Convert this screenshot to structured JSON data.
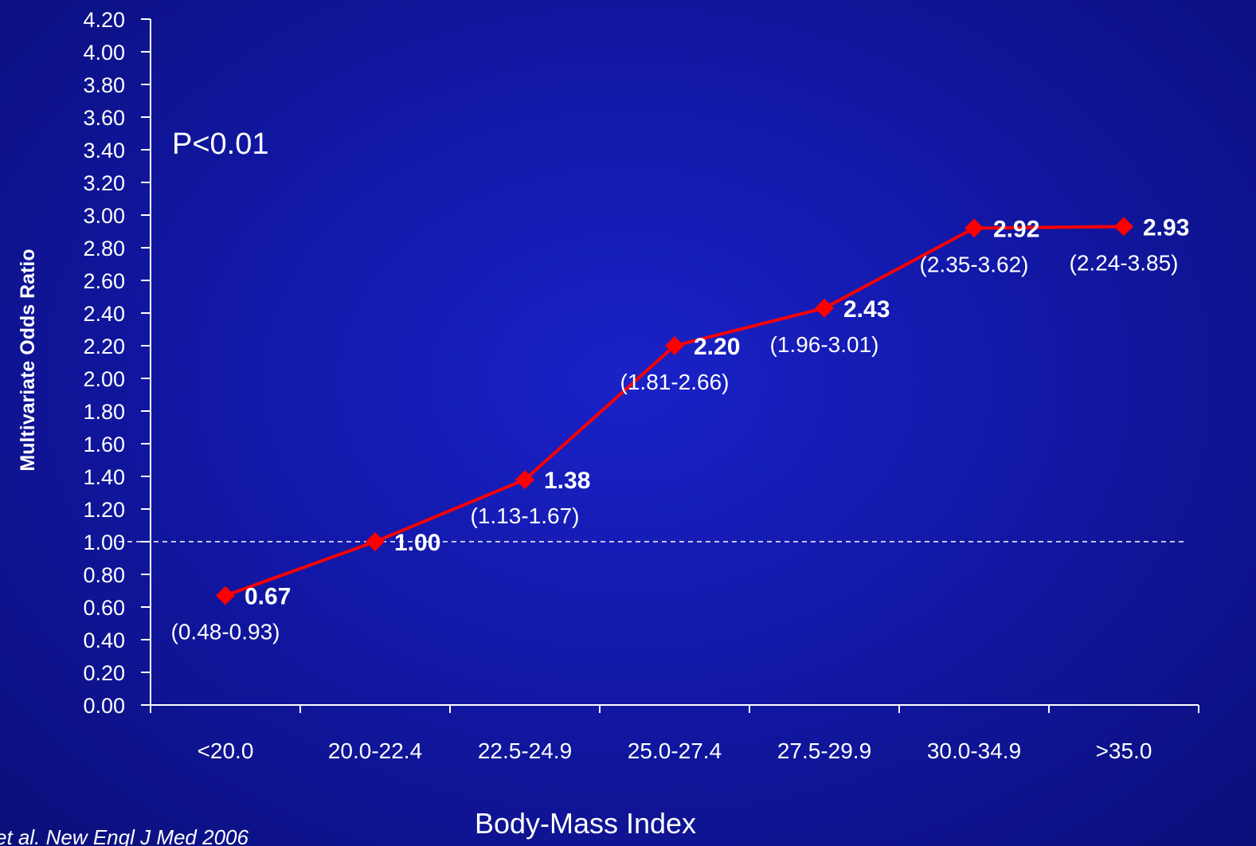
{
  "chart_data": {
    "type": "line",
    "categories": [
      "<20.0",
      "20.0-22.4",
      "22.5-24.9",
      "25.0-27.4",
      "27.5-29.9",
      "30.0-34.9",
      ">35.0"
    ],
    "series": [
      {
        "values": [
          0.67,
          1.0,
          1.38,
          2.2,
          2.43,
          2.92,
          2.93
        ],
        "value_labels": [
          "0.67",
          "1.00",
          "1.38",
          "2.20",
          "2.43",
          "2.92",
          "2.93"
        ],
        "ci_labels": [
          "(0.48-0.93)",
          "",
          "(1.13-1.67)",
          "(1.81-2.66)",
          "(1.96-3.01)",
          "(2.35-3.62)",
          "(2.24-3.85)"
        ],
        "color": "#ff0000",
        "marker": "diamond"
      }
    ],
    "ylabel": "Multivariate Odds Ratio",
    "xlabel": "Body-Mass Index",
    "ylim": [
      0,
      4.2
    ],
    "ytick_step": 0.2,
    "yticks": [
      "0.00",
      "0.20",
      "0.40",
      "0.60",
      "0.80",
      "1.00",
      "1.20",
      "1.40",
      "1.60",
      "1.80",
      "2.00",
      "2.20",
      "2.40",
      "2.60",
      "2.80",
      "3.00",
      "3.20",
      "3.40",
      "3.60",
      "3.80",
      "4.00",
      "4.20"
    ],
    "reference_line": {
      "y": 1.0,
      "style": "dashed",
      "color": "#ffffff"
    },
    "annotation": "P<0.01",
    "grid": false,
    "legend": "none",
    "citation": "et al. New Engl J Med 2006"
  }
}
